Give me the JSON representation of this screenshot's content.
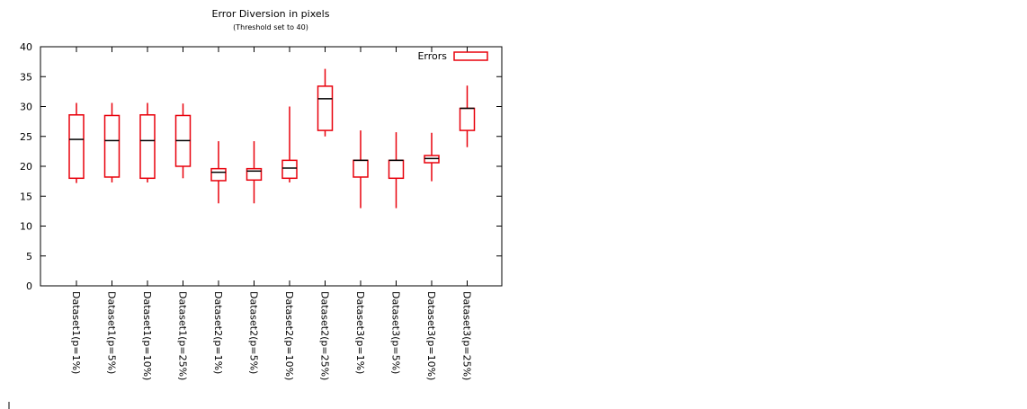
{
  "chart_data": {
    "type": "boxplot",
    "title": "Error Diversion in pixels",
    "subtitle": "(Threshold set to 40)",
    "xlabel": "",
    "ylabel": "",
    "ylim": [
      0,
      40
    ],
    "yticks": [
      0,
      5,
      10,
      15,
      20,
      25,
      30,
      35,
      40
    ],
    "grid": false,
    "legend": {
      "position": "top-right",
      "label": "Errors"
    },
    "colors": {
      "box": "#e8000b",
      "median": "#000000",
      "axis": "#000000"
    },
    "categories": [
      "Dataset1(p=1%)",
      "Dataset1(p=5%)",
      "Dataset1(p=10%)",
      "Dataset1(p=25%)",
      "Dataset2(p=1%)",
      "Dataset2(p=5%)",
      "Dataset2(p=10%)",
      "Dataset2(p=25%)",
      "Dataset3(p=1%)",
      "Dataset3(p=5%)",
      "Dataset3(p=10%)",
      "Dataset3(p=25%)"
    ],
    "series": [
      {
        "name": "Errors",
        "boxes": [
          {
            "min": 17.2,
            "q1": 18.0,
            "median": 24.5,
            "q3": 28.6,
            "max": 30.6
          },
          {
            "min": 17.3,
            "q1": 18.2,
            "median": 24.3,
            "q3": 28.5,
            "max": 30.6
          },
          {
            "min": 17.3,
            "q1": 18.0,
            "median": 24.3,
            "q3": 28.6,
            "max": 30.6
          },
          {
            "min": 18.0,
            "q1": 20.0,
            "median": 24.3,
            "q3": 28.5,
            "max": 30.5
          },
          {
            "min": 13.8,
            "q1": 17.6,
            "median": 19.0,
            "q3": 19.6,
            "max": 24.2
          },
          {
            "min": 13.8,
            "q1": 17.7,
            "median": 19.2,
            "q3": 19.6,
            "max": 24.2
          },
          {
            "min": 17.3,
            "q1": 18.0,
            "median": 19.7,
            "q3": 21.0,
            "max": 30.0
          },
          {
            "min": 25.0,
            "q1": 26.0,
            "median": 31.3,
            "q3": 33.4,
            "max": 36.3
          },
          {
            "min": 13.0,
            "q1": 18.2,
            "median": 21.0,
            "q3": 21.0,
            "max": 26.0
          },
          {
            "min": 13.0,
            "q1": 18.0,
            "median": 21.0,
            "q3": 21.0,
            "max": 25.7
          },
          {
            "min": 17.5,
            "q1": 20.6,
            "median": 21.3,
            "q3": 21.8,
            "max": 25.6
          },
          {
            "min": 23.2,
            "q1": 26.0,
            "median": 29.7,
            "q3": 29.7,
            "max": 33.5
          }
        ]
      }
    ]
  }
}
